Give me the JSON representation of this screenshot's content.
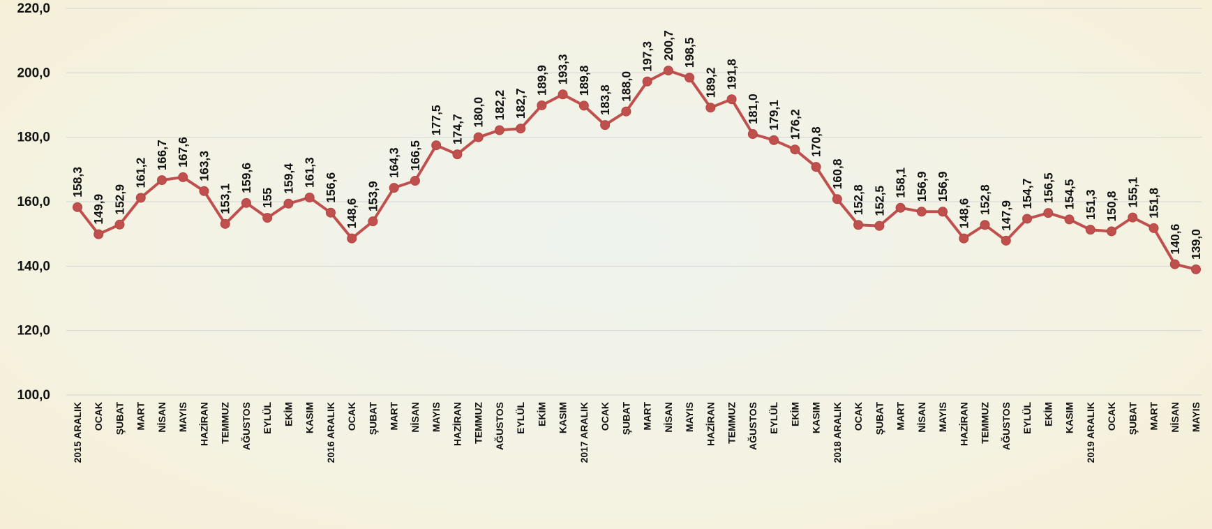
{
  "chart_data": {
    "type": "line",
    "title": "",
    "xlabel": "",
    "ylabel": "",
    "ylim": [
      100,
      220
    ],
    "yticks": [
      "100,0",
      "120,0",
      "140,0",
      "160,0",
      "180,0",
      "200,0",
      "220,0"
    ],
    "grid": true,
    "legend": "none",
    "colors": {
      "line": "#c0504d",
      "marker": "#c0504d",
      "grid": "#d4d4d4"
    },
    "categories": [
      "2015 ARALIK",
      "OCAK",
      "ŞUBAT",
      "MART",
      "NİSAN",
      "MAYIS",
      "HAZİRAN",
      "TEMMUZ",
      "AĞUSTOS",
      "EYLÜL",
      "EKİM",
      "KASIM",
      "2016 ARALIK",
      "OCAK",
      "ŞUBAT",
      "MART",
      "NİSAN",
      "MAYIS",
      "HAZİRAN",
      "TEMMUZ",
      "AĞUSTOS",
      "EYLÜL",
      "EKİM",
      "KASIM",
      "2017 ARALIK",
      "OCAK",
      "ŞUBAT",
      "MART",
      "NİSAN",
      "MAYIS",
      "HAZİRAN",
      "TEMMUZ",
      "AĞUSTOS",
      "EYLÜL",
      "EKİM",
      "KASIM",
      "2018 ARALIK",
      "OCAK",
      "ŞUBAT",
      "MART",
      "NİSAN",
      "MAYIS",
      "HAZİRAN",
      "TEMMUZ",
      "AĞUSTOS",
      "EYLÜL",
      "EKİM",
      "KASIM",
      "2019 ARALIK",
      "OCAK",
      "ŞUBAT",
      "MART",
      "NİSAN",
      "MAYIS"
    ],
    "values": [
      158.3,
      149.9,
      152.9,
      161.2,
      166.7,
      167.6,
      163.3,
      153.1,
      159.6,
      155,
      159.4,
      161.3,
      156.6,
      148.6,
      153.9,
      164.3,
      166.5,
      177.5,
      174.7,
      180.0,
      182.2,
      182.7,
      189.9,
      193.3,
      189.8,
      183.8,
      188.0,
      197.3,
      200.7,
      198.5,
      189.2,
      191.8,
      181.0,
      179.1,
      176.2,
      170.8,
      160.8,
      152.8,
      152.5,
      158.1,
      156.9,
      156.9,
      148.6,
      152.8,
      147.9,
      154.7,
      156.5,
      154.5,
      151.3,
      150.8,
      155.1,
      151.8,
      140.6,
      139.0
    ],
    "data_labels": [
      "158,3",
      "149,9",
      "152,9",
      "161,2",
      "166,7",
      "167,6",
      "163,3",
      "153,1",
      "159,6",
      "155",
      "159,4",
      "161,3",
      "156,6",
      "148,6",
      "153,9",
      "164,3",
      "166,5",
      "177,5",
      "174,7",
      "180,0",
      "182,2",
      "182,7",
      "189,9",
      "193,3",
      "189,8",
      "183,8",
      "188,0",
      "197,3",
      "200,7",
      "198,5",
      "189,2",
      "191,8",
      "181,0",
      "179,1",
      "176,2",
      "170,8",
      "160,8",
      "152,8",
      "152,5",
      "158,1",
      "156,9",
      "156,9",
      "148,6",
      "152,8",
      "147,9",
      "154,7",
      "156,5",
      "154,5",
      "151,3",
      "150,8",
      "155,1",
      "151,8",
      "140,6",
      "139,0"
    ]
  }
}
